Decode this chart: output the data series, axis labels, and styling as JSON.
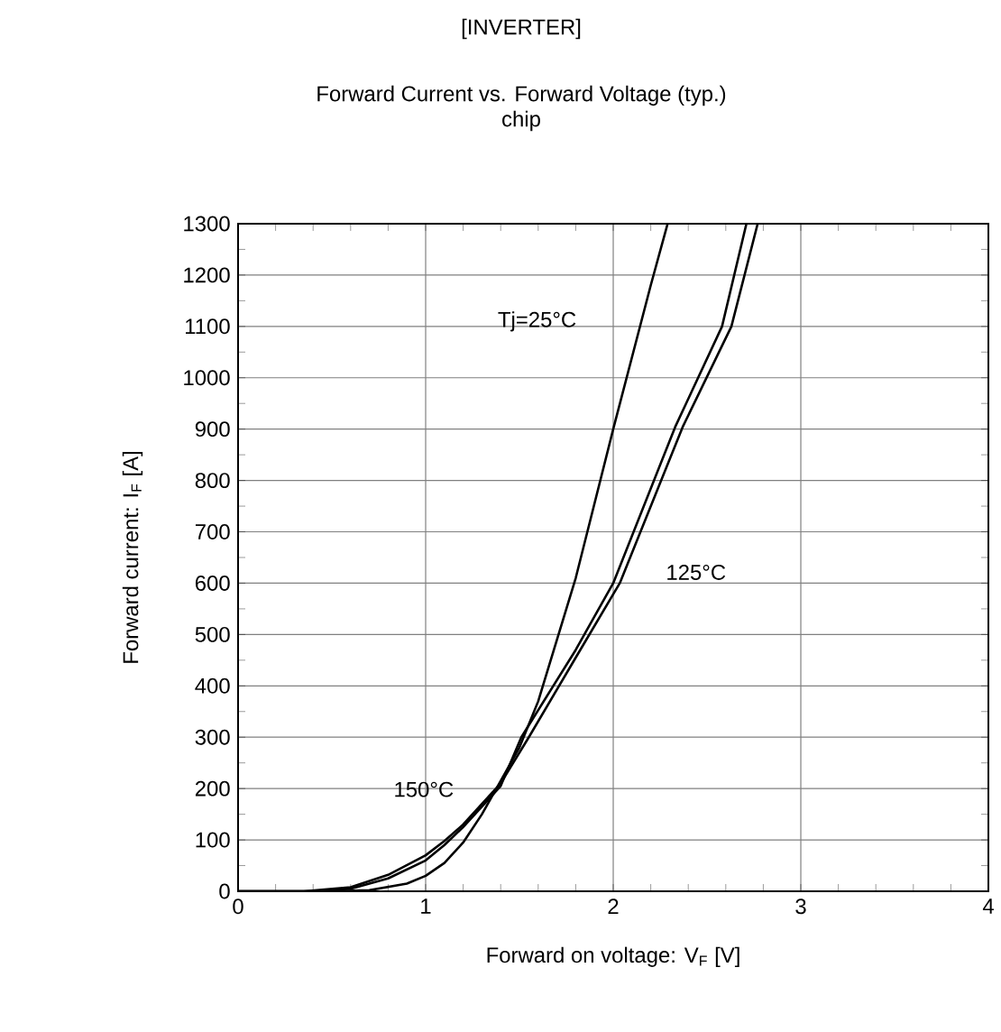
{
  "chart_data": {
    "type": "line",
    "title": "[INVERTER]",
    "subtitle": "Forward Current vs. Forward Voltage (typ.)\nchip",
    "xlabel": "Forward on voltage: V$_{F}$ [V]",
    "ylabel": "Forward current: I$_{F}$ [A]",
    "xlim": [
      0,
      4
    ],
    "ylim": [
      0,
      1300
    ],
    "xticks": [
      0,
      1,
      2,
      3,
      4
    ],
    "yticks": [
      0,
      100,
      200,
      300,
      400,
      500,
      600,
      700,
      800,
      900,
      1000,
      1100,
      1200,
      1300
    ],
    "grid": true,
    "marker": "none",
    "line_style": "solid",
    "series": [
      {
        "name": "Tj=25°C",
        "color": "#000000",
        "x": [
          0,
          0.5,
          0.7,
          0.9,
          1.0,
          1.1,
          1.2,
          1.3,
          1.4,
          1.5,
          1.6,
          1.8,
          2.0,
          2.2,
          2.29
        ],
        "values": [
          0,
          0,
          2,
          15,
          30,
          55,
          95,
          150,
          215,
          280,
          370,
          610,
          900,
          1180,
          1300
        ]
      },
      {
        "name": "125°C",
        "color": "#000000",
        "x": [
          0,
          0.4,
          0.6,
          0.8,
          1.0,
          1.1,
          1.2,
          1.4,
          1.51,
          1.8,
          2.0,
          2.33,
          2.58,
          2.71
        ],
        "values": [
          0,
          0,
          5,
          25,
          60,
          90,
          125,
          205,
          300,
          470,
          600,
          904,
          1100,
          1300
        ]
      },
      {
        "name": "150°C",
        "color": "#000000",
        "x": [
          0,
          0.35,
          0.6,
          0.8,
          1.0,
          1.1,
          1.2,
          1.4,
          1.55,
          1.8,
          2.035,
          2.37,
          2.63,
          2.77
        ],
        "values": [
          0,
          0,
          8,
          32,
          70,
          98,
          130,
          210,
          300,
          455,
          600,
          904,
          1100,
          1300
        ]
      }
    ]
  }
}
